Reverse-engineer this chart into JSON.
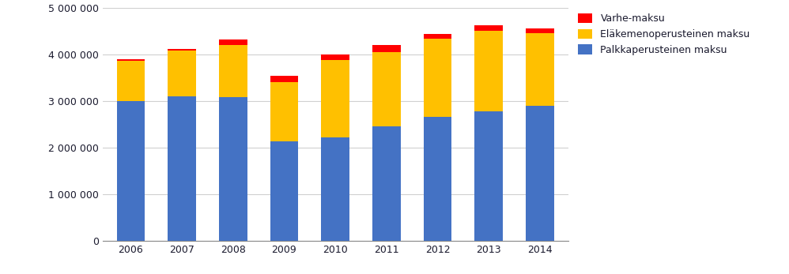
{
  "years": [
    2006,
    2007,
    2008,
    2009,
    2010,
    2011,
    2012,
    2013,
    2014
  ],
  "palkkaperusteinen": [
    3010000,
    3110000,
    3090000,
    2140000,
    2230000,
    2470000,
    2670000,
    2780000,
    2900000
  ],
  "elakemenoperusteinen": [
    860000,
    980000,
    1120000,
    1270000,
    1660000,
    1590000,
    1680000,
    1730000,
    1560000
  ],
  "varhe": [
    40000,
    40000,
    120000,
    140000,
    110000,
    155000,
    100000,
    120000,
    100000
  ],
  "color_palkka": "#4472C4",
  "color_elake": "#FFC000",
  "color_varhe": "#FF0000",
  "legend_varhe": "Varhe-maksu",
  "legend_elake": "Eläkemenoperusteinen maksu",
  "legend_palkka": "Palkkaperusteinen maksu",
  "ylim": [
    0,
    5000000
  ],
  "yticks": [
    0,
    1000000,
    2000000,
    3000000,
    4000000,
    5000000
  ],
  "background_color": "#ffffff",
  "grid_color": "#d0d0d0",
  "axis_color": "#888888",
  "tick_label_color": "#1a1a2e",
  "legend_text_color": "#1a1a2e",
  "bar_width": 0.55,
  "figwidth": 9.98,
  "figheight": 3.47,
  "dpi": 100
}
